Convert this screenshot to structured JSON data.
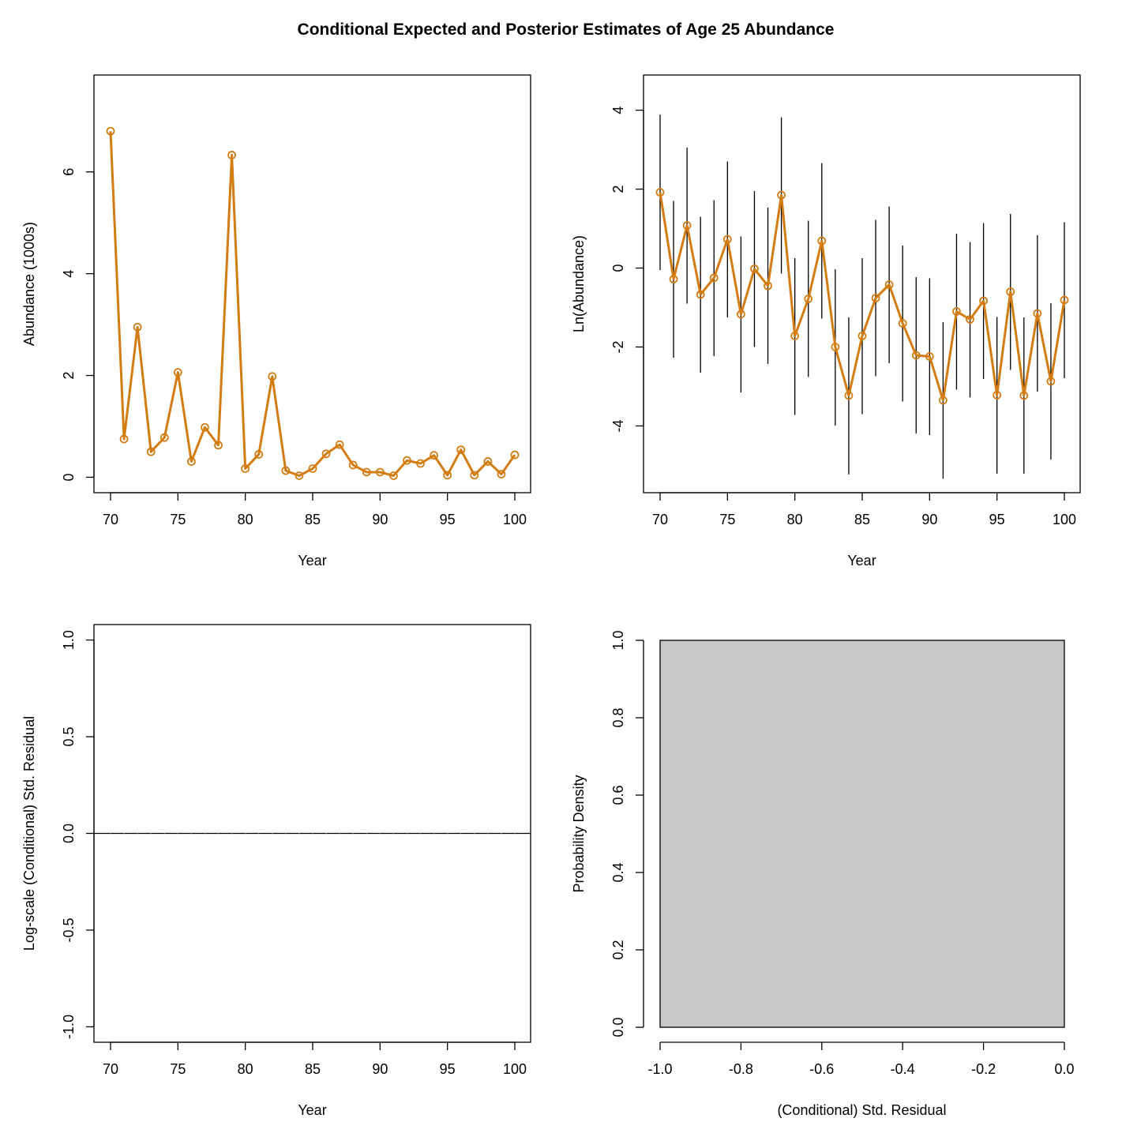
{
  "figure": {
    "title": "Conditional Expected and Posterior Estimates of Age 25 Abundance",
    "series_color": "#d27c12"
  },
  "chart_data": [
    {
      "id": "abundance",
      "type": "line",
      "xlabel": "Year",
      "ylabel": "Abundance (1000s)",
      "xlim": [
        70,
        100
      ],
      "ylim": [
        0,
        7.6
      ],
      "xticks": [
        70,
        75,
        80,
        85,
        90,
        95,
        100
      ],
      "yticks": [
        0,
        2,
        4,
        6
      ],
      "x": [
        70,
        71,
        72,
        73,
        74,
        75,
        76,
        77,
        78,
        79,
        80,
        81,
        82,
        83,
        84,
        85,
        86,
        87,
        88,
        89,
        90,
        91,
        92,
        93,
        94,
        95,
        96,
        97,
        98,
        99,
        100
      ],
      "y": [
        6.8,
        0.75,
        2.95,
        0.5,
        0.78,
        2.06,
        0.31,
        0.98,
        0.63,
        6.33,
        0.17,
        0.45,
        1.98,
        0.13,
        0.03,
        0.17,
        0.46,
        0.64,
        0.24,
        0.1,
        0.1,
        0.03,
        0.33,
        0.27,
        0.43,
        0.04,
        0.54,
        0.04,
        0.31,
        0.06,
        0.44
      ]
    },
    {
      "id": "ln-abundance",
      "type": "line",
      "xlabel": "Year",
      "ylabel": "Ln(Abundance)",
      "xlim": [
        70,
        100
      ],
      "ylim": [
        -5.3,
        4.5
      ],
      "xticks": [
        70,
        75,
        80,
        85,
        90,
        95,
        100
      ],
      "yticks": [
        -4,
        -2,
        0,
        2,
        4
      ],
      "x": [
        70,
        71,
        72,
        73,
        74,
        75,
        76,
        77,
        78,
        79,
        80,
        81,
        82,
        83,
        84,
        85,
        86,
        87,
        88,
        89,
        90,
        91,
        92,
        93,
        94,
        95,
        96,
        97,
        98,
        99,
        100
      ],
      "y": [
        1.92,
        -0.28,
        1.08,
        -0.67,
        -0.25,
        0.73,
        -1.17,
        -0.02,
        -0.45,
        1.85,
        -1.72,
        -0.78,
        0.69,
        -2.0,
        -3.23,
        -1.72,
        -0.76,
        -0.42,
        -1.4,
        -2.21,
        -2.24,
        -3.35,
        -1.1,
        -1.3,
        -0.83,
        -3.22,
        -0.6,
        -3.23,
        -1.15,
        -2.87,
        -0.81
      ],
      "lower": [
        -0.05,
        -2.27,
        -0.9,
        -2.65,
        -2.23,
        -1.25,
        -3.15,
        -2.0,
        -2.43,
        -0.14,
        -3.72,
        -2.76,
        -1.28,
        -3.99,
        -5.23,
        -3.7,
        -2.74,
        -2.41,
        -3.38,
        -4.19,
        -4.23,
        -5.34,
        -3.08,
        -3.28,
        -2.81,
        -5.21,
        -2.58,
        -5.21,
        -3.13,
        -4.85,
        -2.79
      ],
      "upper": [
        3.89,
        1.7,
        3.05,
        1.3,
        1.72,
        2.7,
        0.8,
        1.95,
        1.53,
        3.82,
        0.25,
        1.2,
        2.66,
        -0.03,
        -1.25,
        0.25,
        1.22,
        1.56,
        0.57,
        -0.23,
        -0.26,
        -1.37,
        0.87,
        0.66,
        1.14,
        -1.24,
        1.37,
        -1.25,
        0.83,
        -0.89,
        1.16
      ]
    },
    {
      "id": "std-residual",
      "type": "line",
      "xlabel": "Year",
      "ylabel": "Log-scale (Conditional) Std. Residual",
      "xlim": [
        70,
        100
      ],
      "ylim": [
        -1.0,
        1.0
      ],
      "xticks": [
        70,
        75,
        80,
        85,
        90,
        95,
        100
      ],
      "yticks": [
        -1.0,
        -0.5,
        0.0,
        0.5,
        1.0
      ],
      "ytick_labels": [
        "-1.0",
        "-0.5",
        "0.0",
        "0.5",
        "1.0"
      ],
      "x": [
        70,
        71,
        72,
        73,
        74,
        75,
        76,
        77,
        78,
        79,
        80,
        81,
        82,
        83,
        84,
        85,
        86,
        87,
        88,
        89,
        90,
        91,
        92,
        93,
        94,
        95,
        96,
        97,
        98,
        99,
        100
      ],
      "y": [
        0,
        0,
        0,
        0,
        0,
        0,
        0,
        0,
        0,
        0,
        0,
        0,
        0,
        0,
        0,
        0,
        0,
        0,
        0,
        0,
        0,
        0,
        0,
        0,
        0,
        0,
        0,
        0,
        0,
        0,
        0
      ],
      "reference_line": 0
    },
    {
      "id": "residual-density",
      "type": "bar",
      "xlabel": "(Conditional) Std. Residual",
      "ylabel": "Probability Density",
      "xlim": [
        -1.0,
        0.0
      ],
      "ylim": [
        0.0,
        1.0
      ],
      "xticks": [
        -1.0,
        -0.8,
        -0.6,
        -0.4,
        -0.2,
        0.0
      ],
      "xtick_labels": [
        "-1.0",
        "-0.8",
        "-0.6",
        "-0.4",
        "-0.2",
        "0.0"
      ],
      "yticks": [
        0.0,
        0.2,
        0.4,
        0.6,
        0.8,
        1.0
      ],
      "ytick_labels": [
        "0.0",
        "0.2",
        "0.4",
        "0.6",
        "0.8",
        "1.0"
      ],
      "bins": [
        {
          "x0": -1.0,
          "x1": 0.0,
          "density": 1.0
        }
      ],
      "bar_color": "#c8c8c8"
    }
  ]
}
